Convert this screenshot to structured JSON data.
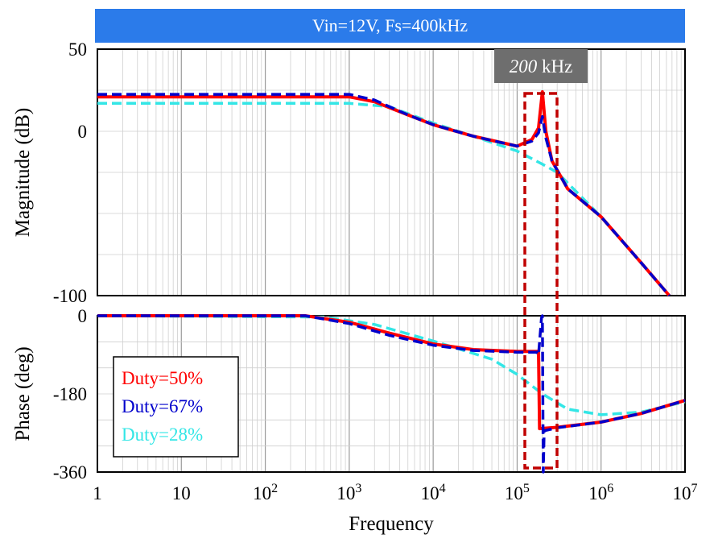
{
  "title": "Vin=12V, Fs=400kHz",
  "annotation": {
    "italic": "200",
    "suffix": " kHz",
    "freq_hz": 200000
  },
  "colors": {
    "duty50": "#ff0000",
    "duty67": "#0000cc",
    "duty28": "#33e6e6",
    "title_bg": "#2b7bea",
    "annot_bg": "#6e6e6e",
    "box": "#c00000"
  },
  "chart_data": [
    {
      "type": "line",
      "title": "Vin=12V, Fs=400kHz",
      "ylabel": "Magnitude (dB)",
      "xlabel": "",
      "xscale": "log",
      "xlim": [
        1,
        10000000
      ],
      "ylim": [
        -100,
        50
      ],
      "y_ticks": [
        50,
        0,
        -100
      ],
      "grid": true,
      "series": [
        {
          "name": "Duty=50%",
          "color": "#ff0000",
          "style": "solid",
          "points": [
            [
              1,
              21
            ],
            [
              1000,
              21
            ],
            [
              2000,
              18
            ],
            [
              5000,
              10
            ],
            [
              10000,
              4
            ],
            [
              30000,
              -3
            ],
            [
              100000,
              -9
            ],
            [
              150000,
              -5
            ],
            [
              180000,
              2
            ],
            [
              200000,
              24
            ],
            [
              220000,
              0
            ],
            [
              260000,
              -18
            ],
            [
              400000,
              -35
            ],
            [
              1000000,
              -52
            ],
            [
              3000000,
              -80
            ],
            [
              6500000,
              -100
            ]
          ]
        },
        {
          "name": "Duty=67%",
          "color": "#0000cc",
          "style": "dashed",
          "points": [
            [
              1,
              22.5
            ],
            [
              1000,
              22.5
            ],
            [
              2000,
              19
            ],
            [
              5000,
              10
            ],
            [
              10000,
              4
            ],
            [
              30000,
              -3
            ],
            [
              100000,
              -9
            ],
            [
              150000,
              -6
            ],
            [
              180000,
              -1
            ],
            [
              200000,
              9
            ],
            [
              220000,
              -4
            ],
            [
              260000,
              -18
            ],
            [
              400000,
              -35
            ],
            [
              1000000,
              -52
            ],
            [
              3000000,
              -80
            ],
            [
              6500000,
              -100
            ]
          ]
        },
        {
          "name": "Duty=28%",
          "color": "#33e6e6",
          "style": "dashed",
          "points": [
            [
              1,
              17
            ],
            [
              1000,
              17
            ],
            [
              3000,
              15
            ],
            [
              10000,
              5
            ],
            [
              30000,
              -3
            ],
            [
              100000,
              -12
            ],
            [
              200000,
              -20
            ],
            [
              300000,
              -25
            ],
            [
              1000000,
              -52
            ],
            [
              3000000,
              -80
            ],
            [
              6500000,
              -100
            ]
          ]
        }
      ]
    },
    {
      "type": "line",
      "title": "",
      "ylabel": "Phase (deg)",
      "xlabel": "Frequency",
      "xscale": "log",
      "xlim": [
        1,
        10000000
      ],
      "ylim": [
        -360,
        0
      ],
      "y_ticks": [
        0,
        -180,
        -360
      ],
      "x_ticks": [
        {
          "base": "1",
          "exp": ""
        },
        {
          "base": "10",
          "exp": ""
        },
        {
          "base": "10",
          "exp": "2"
        },
        {
          "base": "10",
          "exp": "3"
        },
        {
          "base": "10",
          "exp": "4"
        },
        {
          "base": "10",
          "exp": "5"
        },
        {
          "base": "10",
          "exp": "6"
        },
        {
          "base": "10",
          "exp": "7"
        }
      ],
      "grid": true,
      "series": [
        {
          "name": "Duty=50%",
          "color": "#ff0000",
          "style": "solid",
          "points": [
            [
              1,
              0
            ],
            [
              300,
              0
            ],
            [
              1000,
              -15
            ],
            [
              3000,
              -40
            ],
            [
              10000,
              -65
            ],
            [
              30000,
              -78
            ],
            [
              100000,
              -82
            ],
            [
              180000,
              -82
            ],
            [
              185000,
              -260
            ],
            [
              300000,
              -257
            ],
            [
              1000000,
              -245
            ],
            [
              3000000,
              -225
            ],
            [
              10000000,
              -195
            ]
          ]
        },
        {
          "name": "Duty=67%",
          "color": "#0000cc",
          "style": "dashed",
          "points": [
            [
              1,
              0
            ],
            [
              300,
              0
            ],
            [
              1000,
              -18
            ],
            [
              3000,
              -45
            ],
            [
              10000,
              -68
            ],
            [
              30000,
              -80
            ],
            [
              100000,
              -84
            ],
            [
              170000,
              -84
            ],
            [
              180000,
              -90
            ],
            [
              195000,
              -5
            ],
            [
              200000,
              0
            ],
            [
              205000,
              -360
            ],
            [
              210000,
              -265
            ],
            [
              300000,
              -258
            ],
            [
              1000000,
              -245
            ],
            [
              3000000,
              -225
            ],
            [
              10000000,
              -195
            ]
          ]
        },
        {
          "name": "Duty=28%",
          "color": "#33e6e6",
          "style": "dashed",
          "points": [
            [
              1,
              0
            ],
            [
              500,
              -3
            ],
            [
              2000,
              -20
            ],
            [
              10000,
              -58
            ],
            [
              50000,
              -100
            ],
            [
              100000,
              -135
            ],
            [
              200000,
              -180
            ],
            [
              400000,
              -215
            ],
            [
              1000000,
              -228
            ],
            [
              3000000,
              -222
            ],
            [
              10000000,
              -198
            ]
          ]
        }
      ],
      "legend": {
        "placement": "bottom-left",
        "entries": [
          "Duty=50%",
          "Duty=67%",
          "Duty=28%"
        ]
      }
    }
  ]
}
